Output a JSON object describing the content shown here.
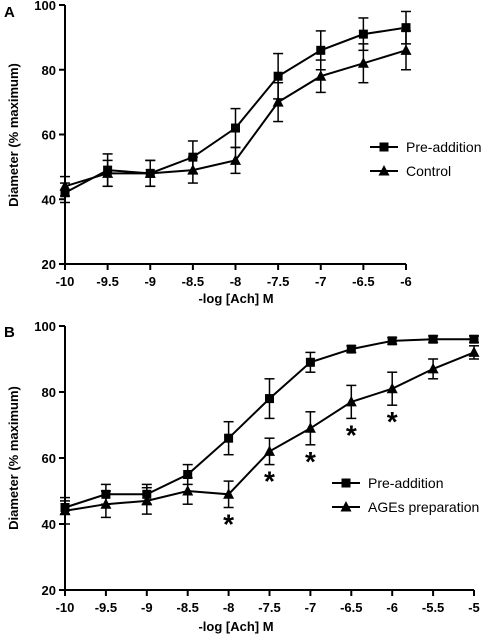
{
  "chart_data": [
    {
      "panel": "A",
      "type": "line",
      "xlabel": "-log [Ach] M",
      "ylabel": "Diameter (% maximum)",
      "xlim": [
        -10,
        -6
      ],
      "ylim": [
        20,
        100
      ],
      "x_ticks": [
        "-10",
        "-9.5",
        "-9",
        "-8.5",
        "-8",
        "-7.5",
        "-7",
        "-6.5",
        "-6"
      ],
      "y_ticks": [
        "20",
        "40",
        "60",
        "80",
        "100"
      ],
      "legend_position": "right",
      "series": [
        {
          "name": "Pre-addition",
          "marker": "square",
          "x": [
            -10,
            -9.5,
            -9,
            -8.5,
            -8,
            -7.5,
            -7,
            -6.5,
            -6
          ],
          "y": [
            42,
            49,
            48,
            53,
            62,
            78,
            86,
            91,
            93
          ],
          "err": [
            3,
            5,
            4,
            5,
            6,
            7,
            6,
            5,
            5
          ]
        },
        {
          "name": "Control",
          "marker": "triangle",
          "x": [
            -10,
            -9.5,
            -9,
            -8.5,
            -8,
            -7.5,
            -7,
            -6.5,
            -6
          ],
          "y": [
            44,
            48,
            48,
            49,
            52,
            70,
            78,
            82,
            86
          ],
          "err": [
            3,
            4,
            4,
            4,
            4,
            6,
            5,
            6,
            6
          ]
        }
      ],
      "significance_marks": []
    },
    {
      "panel": "B",
      "type": "line",
      "xlabel": "-log [Ach] M",
      "ylabel": "Diameter (% maximum)",
      "xlim": [
        -10,
        -5
      ],
      "ylim": [
        20,
        100
      ],
      "x_ticks": [
        "-10",
        "-9.5",
        "-9",
        "-8.5",
        "-8",
        "-7.5",
        "-7",
        "-6.5",
        "-6",
        "-5.5",
        "-5"
      ],
      "y_ticks": [
        "20",
        "40",
        "60",
        "80",
        "100"
      ],
      "legend_position": "right",
      "series": [
        {
          "name": "Pre-addition",
          "marker": "square",
          "x": [
            -10,
            -9.5,
            -9,
            -8.5,
            -8,
            -7.5,
            -7,
            -6.5,
            -6,
            -5.5,
            -5
          ],
          "y": [
            45,
            49,
            49,
            55,
            66,
            78,
            89,
            93,
            95.5,
            96,
            96
          ],
          "err": [
            2,
            3,
            3,
            3,
            5,
            6,
            3,
            1,
            1,
            1,
            1
          ]
        },
        {
          "name": "AGEs preparation",
          "marker": "triangle",
          "x": [
            -10,
            -9.5,
            -9,
            -8.5,
            -8,
            -7.5,
            -7,
            -6.5,
            -6,
            -5.5,
            -5
          ],
          "y": [
            44,
            46,
            47,
            50,
            49,
            62,
            69,
            77,
            81,
            87,
            92
          ],
          "err": [
            4,
            4,
            4,
            4,
            4,
            4,
            5,
            5,
            5,
            3,
            2
          ]
        }
      ],
      "significance_marks": [
        {
          "x": -8,
          "label": "*"
        },
        {
          "x": -7.5,
          "label": "*"
        },
        {
          "x": -7,
          "label": "*"
        },
        {
          "x": -6.5,
          "label": "*"
        },
        {
          "x": -6,
          "label": "*"
        }
      ]
    }
  ]
}
